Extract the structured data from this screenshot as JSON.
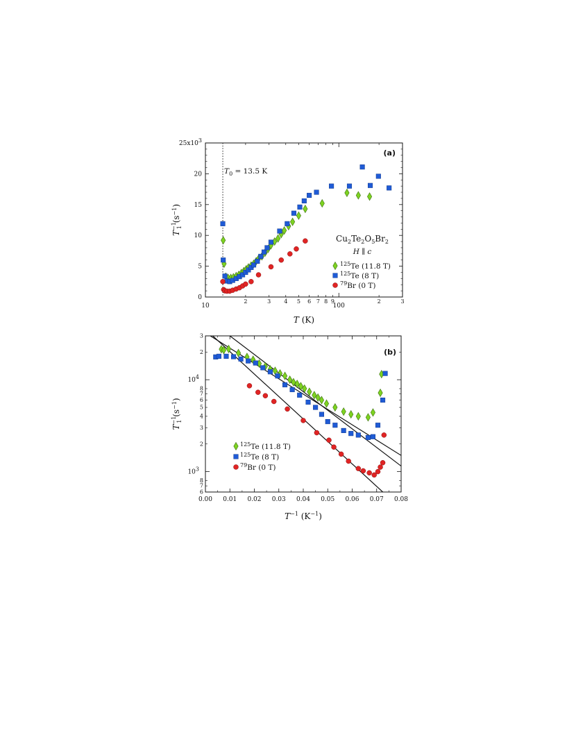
{
  "chart_data": [
    {
      "type": "scatter",
      "panel_label": "(a)",
      "xlabel_sym": "T",
      "xlabel_unit": "(K)",
      "ylabel_sym": "T",
      "ylabel_sub": "1",
      "ylabel_sup": "−1",
      "ylabel_unit": "(s",
      "ylabel_unit_sup": "−1",
      "ylabel_close": ")",
      "x_scale": "log",
      "xlim": [
        10,
        300
      ],
      "ylim": [
        0,
        25000
      ],
      "x_major_ticks": [
        {
          "v": 10,
          "label": "10"
        },
        {
          "v": 100,
          "label": "100"
        }
      ],
      "x_minor_ticks": [
        {
          "v": 20,
          "label": "2"
        },
        {
          "v": 30,
          "label": "3"
        },
        {
          "v": 40,
          "label": "4"
        },
        {
          "v": 50,
          "label": "5"
        },
        {
          "v": 60,
          "label": "6"
        },
        {
          "v": 70,
          "label": "7"
        },
        {
          "v": 80,
          "label": "8"
        },
        {
          "v": 90,
          "label": "9"
        },
        {
          "v": 200,
          "label": "2"
        },
        {
          "v": 300,
          "label": "3"
        }
      ],
      "y_ticks": [
        {
          "v": 0,
          "label": "0"
        },
        {
          "v": 5000,
          "label": "5"
        },
        {
          "v": 10000,
          "label": "10"
        },
        {
          "v": 15000,
          "label": "15"
        },
        {
          "v": 20000,
          "label": "20"
        },
        {
          "v": 25000,
          "label": "25x10"
        }
      ],
      "y_top_sup": "3",
      "annotation": {
        "sym": "T",
        "sub": "0",
        "text": " = 13.5 K",
        "x": 13.5
      },
      "compound": {
        "parts": [
          "Cu",
          "2",
          "Te",
          "2",
          "O",
          "5",
          "Br",
          "2"
        ]
      },
      "field_dir": {
        "sym": "H",
        "rel": " ∥ ",
        "axis": "c"
      },
      "series": [
        {
          "name": "Te (11.8 T)",
          "iso": "125",
          "marker": "diamond",
          "color": "#7ed321",
          "points": [
            [
              13.6,
              9200
            ],
            [
              13.8,
              5400
            ],
            [
              14.2,
              3300
            ],
            [
              14.8,
              3100
            ],
            [
              15.5,
              3100
            ],
            [
              16.2,
              3200
            ],
            [
              17,
              3400
            ],
            [
              17.8,
              3600
            ],
            [
              18.6,
              3900
            ],
            [
              19.4,
              4200
            ],
            [
              20.2,
              4500
            ],
            [
              21,
              4800
            ],
            [
              22,
              5100
            ],
            [
              23,
              5400
            ],
            [
              24,
              5800
            ],
            [
              25,
              6200
            ],
            [
              26.5,
              6600
            ],
            [
              28,
              7200
            ],
            [
              29.5,
              7800
            ],
            [
              31,
              8400
            ],
            [
              33,
              9000
            ],
            [
              35,
              9500
            ],
            [
              37,
              10200
            ],
            [
              39,
              10800
            ],
            [
              42,
              11500
            ],
            [
              45,
              12200
            ],
            [
              50,
              13200
            ],
            [
              56,
              14300
            ],
            [
              75,
              15200
            ],
            [
              115,
              16900
            ],
            [
              140,
              16500
            ],
            [
              170,
              16300
            ]
          ]
        },
        {
          "name": "Te (8 T)",
          "iso": "125",
          "marker": "square",
          "color": "#1f5bd6",
          "points": [
            [
              13.5,
              11900
            ],
            [
              13.6,
              6000
            ],
            [
              14,
              3400
            ],
            [
              14.5,
              2600
            ],
            [
              15.2,
              2500
            ],
            [
              16,
              2700
            ],
            [
              17,
              3000
            ],
            [
              18,
              3300
            ],
            [
              19,
              3600
            ],
            [
              20,
              4000
            ],
            [
              21,
              4400
            ],
            [
              22,
              4800
            ],
            [
              23,
              5200
            ],
            [
              24.5,
              5800
            ],
            [
              26,
              6600
            ],
            [
              27.5,
              7300
            ],
            [
              29,
              8000
            ],
            [
              31,
              8900
            ],
            [
              36,
              10700
            ],
            [
              41,
              11900
            ],
            [
              46,
              13600
            ],
            [
              51,
              14600
            ],
            [
              55,
              15600
            ],
            [
              60,
              16500
            ],
            [
              68,
              17000
            ],
            [
              88,
              18000
            ],
            [
              120,
              18000
            ],
            [
              150,
              21100
            ],
            [
              172,
              18100
            ],
            [
              198,
              19600
            ],
            [
              238,
              17700
            ]
          ]
        },
        {
          "name": "Br (0 T)",
          "iso": "79",
          "marker": "circle",
          "color": "#e02424",
          "points": [
            [
              13.5,
              2500
            ],
            [
              13.7,
              1200
            ],
            [
              14,
              1000
            ],
            [
              14.5,
              950
            ],
            [
              15.2,
              950
            ],
            [
              16,
              1100
            ],
            [
              17,
              1300
            ],
            [
              18,
              1500
            ],
            [
              19,
              1800
            ],
            [
              20,
              2100
            ],
            [
              22,
              2500
            ],
            [
              25,
              3600
            ],
            [
              31,
              4900
            ],
            [
              37,
              6000
            ],
            [
              43,
              7000
            ],
            [
              48,
              7800
            ],
            [
              56,
              9100
            ]
          ]
        }
      ]
    },
    {
      "type": "scatter",
      "panel_label": "(b)",
      "xlabel_sym": "T",
      "xlabel_sup": "−1",
      "xlabel_unit": "(K",
      "xlabel_unit_sup": "−1",
      "xlabel_close": ")",
      "ylabel_sym": "T",
      "ylabel_sub": "1",
      "ylabel_sup": "−1",
      "ylabel_unit": "(s",
      "ylabel_unit_sup": "−1",
      "ylabel_close": ")",
      "y_scale": "log",
      "xlim": [
        0.0,
        0.08
      ],
      "ylim": [
        600,
        30000
      ],
      "x_ticks": [
        {
          "v": 0.0,
          "label": "0.00"
        },
        {
          "v": 0.01,
          "label": "0.01"
        },
        {
          "v": 0.02,
          "label": "0.02"
        },
        {
          "v": 0.03,
          "label": "0.03"
        },
        {
          "v": 0.04,
          "label": "0.04"
        },
        {
          "v": 0.05,
          "label": "0.05"
        },
        {
          "v": 0.06,
          "label": "0.06"
        },
        {
          "v": 0.07,
          "label": "0.07"
        },
        {
          "v": 0.08,
          "label": "0.08"
        }
      ],
      "y_major_ticks": [
        {
          "v": 1000,
          "base": "10",
          "exp": "3"
        },
        {
          "v": 10000,
          "base": "10",
          "exp": "4"
        }
      ],
      "y_minor_ticks": [
        {
          "v": 600,
          "label": "6"
        },
        {
          "v": 700,
          "label": "7"
        },
        {
          "v": 800,
          "label": "8"
        },
        {
          "v": 2000,
          "label": "2"
        },
        {
          "v": 3000,
          "label": "3"
        },
        {
          "v": 4000,
          "label": "4"
        },
        {
          "v": 5000,
          "label": "5"
        },
        {
          "v": 6000,
          "label": "6"
        },
        {
          "v": 7000,
          "label": "7"
        },
        {
          "v": 8000,
          "label": "8"
        },
        {
          "v": 20000,
          "label": "2"
        },
        {
          "v": 30000,
          "label": "3"
        }
      ],
      "fit_lines": [
        {
          "color": "#111111",
          "points": [
            [
              0.002,
              30000
            ],
            [
              0.08,
              1500
            ]
          ]
        },
        {
          "color": "#111111",
          "points": [
            [
              0.01,
              30000
            ],
            [
              0.08,
              1150
            ]
          ]
        },
        {
          "color": "#111111",
          "points": [
            [
              0.003,
              30000
            ],
            [
              0.0725,
              600
            ]
          ]
        }
      ],
      "series": [
        {
          "name": "Te (11.8 T)",
          "iso": "125",
          "marker": "diamond",
          "color": "#7ed321",
          "points": [
            [
              0.0065,
              21500
            ],
            [
              0.0075,
              21000
            ],
            [
              0.0095,
              21600
            ],
            [
              0.0135,
              19500
            ],
            [
              0.017,
              17700
            ],
            [
              0.0195,
              16500
            ],
            [
              0.022,
              15000
            ],
            [
              0.0245,
              14000
            ],
            [
              0.0265,
              13000
            ],
            [
              0.0285,
              12500
            ],
            [
              0.0305,
              11700
            ],
            [
              0.0325,
              11000
            ],
            [
              0.0345,
              10000
            ],
            [
              0.036,
              9400
            ],
            [
              0.0375,
              9000
            ],
            [
              0.039,
              8500
            ],
            [
              0.0405,
              8000
            ],
            [
              0.0425,
              7400
            ],
            [
              0.0445,
              6800
            ],
            [
              0.046,
              6400
            ],
            [
              0.0475,
              6000
            ],
            [
              0.0495,
              5500
            ],
            [
              0.053,
              5000
            ],
            [
              0.0565,
              4500
            ],
            [
              0.0595,
              4200
            ],
            [
              0.0625,
              4000
            ],
            [
              0.0665,
              3900
            ],
            [
              0.0685,
              4400
            ],
            [
              0.0715,
              7200
            ],
            [
              0.072,
              11500
            ]
          ]
        },
        {
          "name": "Te (8 T)",
          "iso": "125",
          "marker": "square",
          "color": "#1f5bd6",
          "points": [
            [
              0.0042,
              17700
            ],
            [
              0.0055,
              18000
            ],
            [
              0.0085,
              18000
            ],
            [
              0.0115,
              17800
            ],
            [
              0.0145,
              16800
            ],
            [
              0.0175,
              16000
            ],
            [
              0.0205,
              15200
            ],
            [
              0.0235,
              13500
            ],
            [
              0.0265,
              12200
            ],
            [
              0.0295,
              11000
            ],
            [
              0.0325,
              8800
            ],
            [
              0.0355,
              7800
            ],
            [
              0.0385,
              6800
            ],
            [
              0.042,
              5700
            ],
            [
              0.045,
              5000
            ],
            [
              0.0475,
              4200
            ],
            [
              0.05,
              3500
            ],
            [
              0.053,
              3200
            ],
            [
              0.0565,
              2800
            ],
            [
              0.0595,
              2600
            ],
            [
              0.0625,
              2500
            ],
            [
              0.0665,
              2350
            ],
            [
              0.0685,
              2400
            ],
            [
              0.0705,
              3200
            ],
            [
              0.0725,
              6000
            ],
            [
              0.0735,
              11700
            ]
          ]
        },
        {
          "name": "Br (0 T)",
          "iso": "79",
          "marker": "circle",
          "color": "#e02424",
          "points": [
            [
              0.018,
              8600
            ],
            [
              0.0215,
              7300
            ],
            [
              0.0245,
              6700
            ],
            [
              0.028,
              5800
            ],
            [
              0.0335,
              4800
            ],
            [
              0.04,
              3600
            ],
            [
              0.0455,
              2650
            ],
            [
              0.0505,
              2200
            ],
            [
              0.0525,
              1850
            ],
            [
              0.0555,
              1550
            ],
            [
              0.0585,
              1300
            ],
            [
              0.0625,
              1080
            ],
            [
              0.0645,
              1020
            ],
            [
              0.067,
              970
            ],
            [
              0.069,
              920
            ],
            [
              0.0705,
              1000
            ],
            [
              0.0715,
              1120
            ],
            [
              0.0725,
              1250
            ],
            [
              0.073,
              2500
            ]
          ]
        }
      ]
    }
  ]
}
